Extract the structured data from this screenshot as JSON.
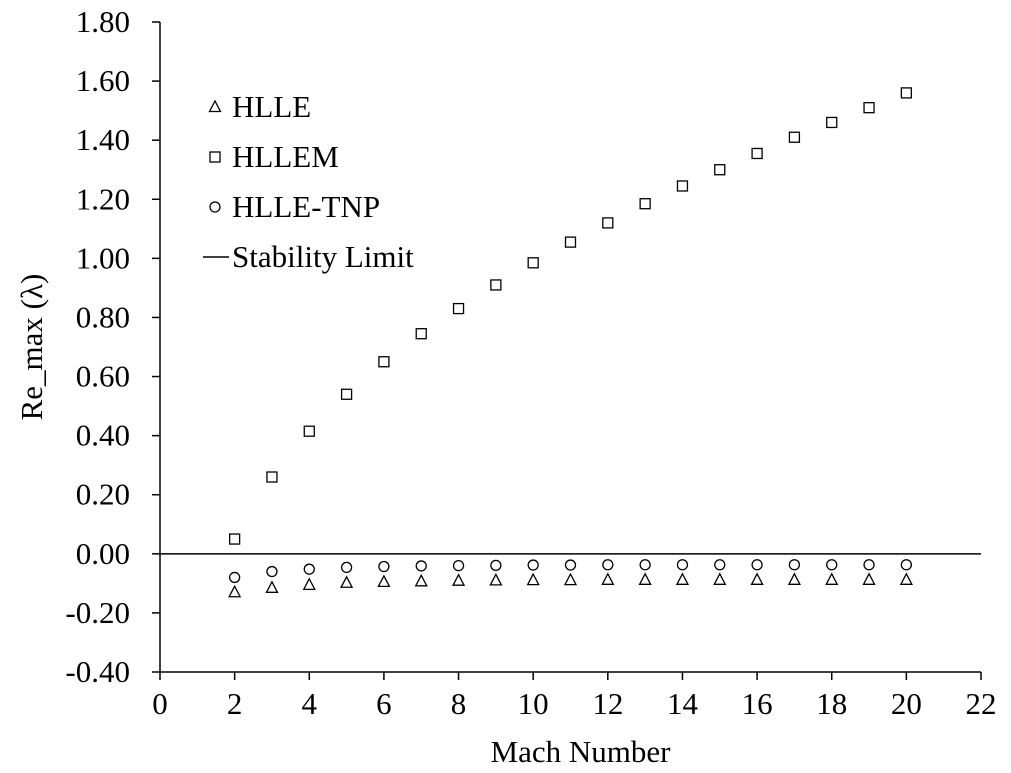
{
  "chart_data": {
    "type": "scatter",
    "title": "",
    "xlabel": "Mach Number",
    "ylabel": "Re_max (λ)",
    "xlim": [
      0,
      22
    ],
    "ylim": [
      -0.4,
      1.8
    ],
    "xticks": [
      0,
      2,
      4,
      6,
      8,
      10,
      12,
      14,
      16,
      18,
      20,
      22
    ],
    "yticks": [
      -0.4,
      -0.2,
      0.0,
      0.2,
      0.4,
      0.6,
      0.8,
      1.0,
      1.2,
      1.4,
      1.6,
      1.8
    ],
    "xtick_labels": [
      "0",
      "2",
      "4",
      "6",
      "8",
      "10",
      "12",
      "14",
      "16",
      "18",
      "20",
      "22"
    ],
    "ytick_labels": [
      "-0.40",
      "-0.20",
      "0.00",
      "0.20",
      "0.40",
      "0.60",
      "0.80",
      "1.00",
      "1.20",
      "1.40",
      "1.60",
      "1.80"
    ],
    "grid": false,
    "legend_position": "top-left",
    "series": [
      {
        "name": "HLLE",
        "marker": "triangle",
        "x": [
          2,
          3,
          4,
          5,
          6,
          7,
          8,
          9,
          10,
          11,
          12,
          13,
          14,
          15,
          16,
          17,
          18,
          19,
          20
        ],
        "y": [
          -0.13,
          -0.115,
          -0.105,
          -0.098,
          -0.095,
          -0.093,
          -0.091,
          -0.09,
          -0.089,
          -0.089,
          -0.088,
          -0.088,
          -0.088,
          -0.088,
          -0.088,
          -0.088,
          -0.088,
          -0.088,
          -0.088
        ]
      },
      {
        "name": "HLLEM",
        "marker": "square",
        "x": [
          2,
          3,
          4,
          5,
          6,
          7,
          8,
          9,
          10,
          11,
          12,
          13,
          14,
          15,
          16,
          17,
          18,
          19,
          20
        ],
        "y": [
          0.05,
          0.26,
          0.415,
          0.54,
          0.65,
          0.745,
          0.83,
          0.91,
          0.985,
          1.055,
          1.12,
          1.185,
          1.245,
          1.3,
          1.355,
          1.41,
          1.46,
          1.51,
          1.56
        ]
      },
      {
        "name": "HLLE-TNP",
        "marker": "circle",
        "x": [
          2,
          3,
          4,
          5,
          6,
          7,
          8,
          9,
          10,
          11,
          12,
          13,
          14,
          15,
          16,
          17,
          18,
          19,
          20
        ],
        "y": [
          -0.08,
          -0.06,
          -0.052,
          -0.046,
          -0.043,
          -0.041,
          -0.04,
          -0.039,
          -0.038,
          -0.038,
          -0.037,
          -0.037,
          -0.037,
          -0.037,
          -0.037,
          -0.037,
          -0.037,
          -0.037,
          -0.037
        ]
      }
    ],
    "reference_lines": [
      {
        "name": "Stability Limit",
        "y": 0.0,
        "x_range": [
          0,
          22
        ]
      }
    ],
    "legend": [
      {
        "marker": "triangle",
        "label": "HLLE"
      },
      {
        "marker": "square",
        "label": "HLLEM"
      },
      {
        "marker": "circle",
        "label": "HLLE-TNP"
      },
      {
        "marker": "line",
        "label": "Stability Limit"
      }
    ]
  }
}
